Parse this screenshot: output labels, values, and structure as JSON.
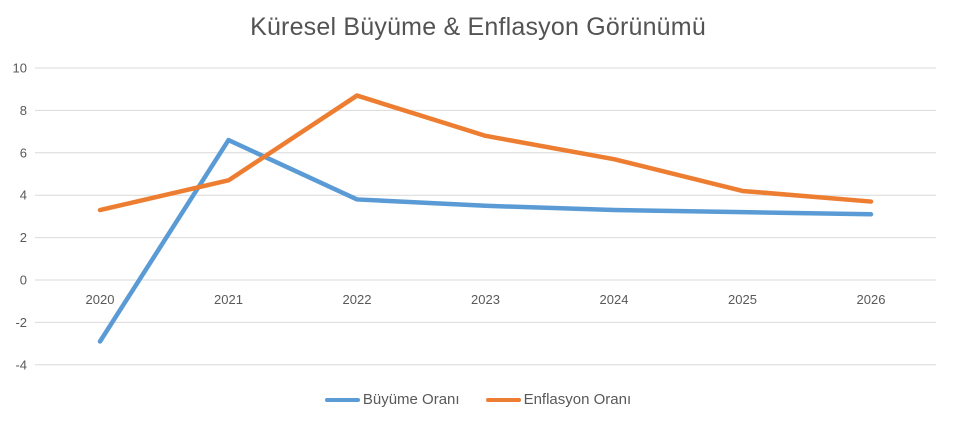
{
  "chart_data": {
    "type": "line",
    "title": "Küresel Büyüme & Enflasyon Görünümü",
    "categories": [
      "2020",
      "2021",
      "2022",
      "2023",
      "2024",
      "2025",
      "2026"
    ],
    "series": [
      {
        "name": "Büyüme Oranı",
        "color": "#5B9BD5",
        "values": [
          -2.9,
          6.6,
          3.8,
          3.5,
          3.3,
          3.2,
          3.1
        ]
      },
      {
        "name": "Enflasyon Oranı",
        "color": "#ED7D31",
        "values": [
          3.3,
          4.7,
          8.7,
          6.8,
          5.7,
          4.2,
          3.7
        ]
      }
    ],
    "xlabel": "",
    "ylabel": "",
    "ylim": [
      -4,
      10
    ],
    "yticks": [
      -4,
      -2,
      0,
      2,
      4,
      6,
      8,
      10
    ],
    "grid": "horizontal",
    "legend_position": "bottom"
  },
  "colors": {
    "title_text": "#535353",
    "axis_text": "#595959",
    "gridline": "#D9D9D9",
    "background": "#FFFFFF"
  }
}
